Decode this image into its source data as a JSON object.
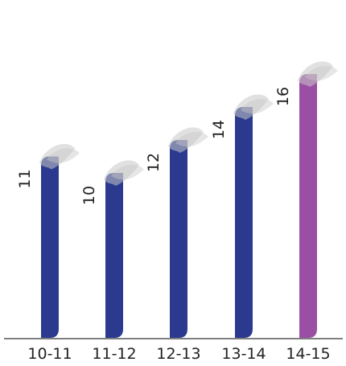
{
  "chart_data": {
    "type": "bar",
    "categories": [
      "10-11",
      "11-12",
      "12-13",
      "13-14",
      "14-15"
    ],
    "values": [
      11,
      10,
      12,
      14,
      16
    ],
    "ylim": [
      0,
      17
    ],
    "grid": false,
    "colors": {
      "default": "#2b3a8f",
      "highlight": "#9b4fa4",
      "axis": "#555555",
      "ribbon": "#c8c8c8"
    },
    "highlight_index": 4
  }
}
